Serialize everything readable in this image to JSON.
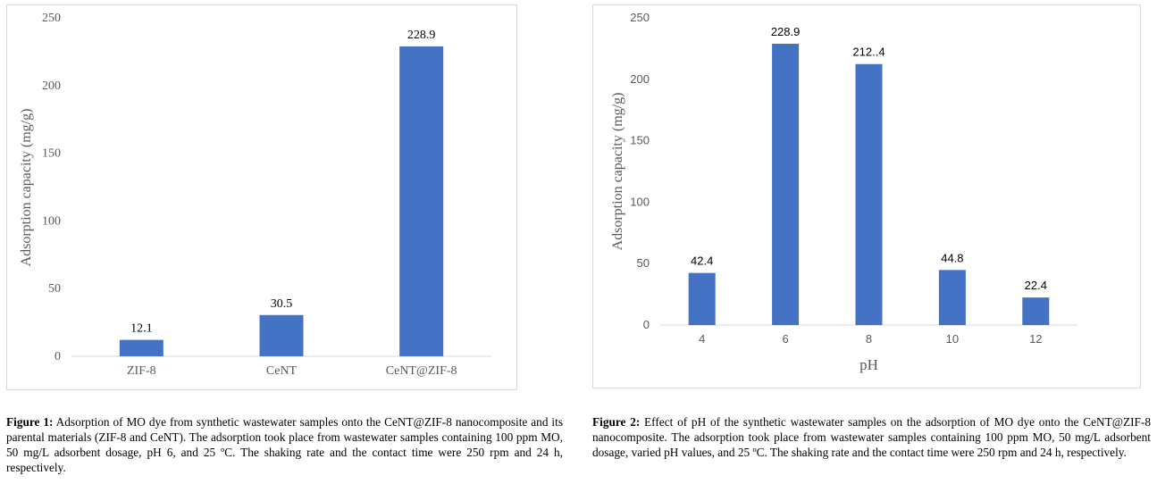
{
  "chart_data": [
    {
      "type": "bar",
      "title": "",
      "xlabel": "",
      "ylabel": "Adsorption capacity (mg/g)",
      "categories": [
        "ZIF-8",
        "CeNT",
        "CeNT@ZIF-8"
      ],
      "values": [
        12.1,
        30.5,
        228.9
      ],
      "data_labels": [
        "12.1",
        "30.5",
        "228.9"
      ],
      "ylim": [
        0,
        250
      ],
      "yticks": [
        0,
        50,
        100,
        150,
        200,
        250
      ],
      "grid": false,
      "color": "#4472c4"
    },
    {
      "type": "bar",
      "title": "",
      "xlabel": "pH",
      "ylabel": "Adsorption capacity (mg/g)",
      "categories": [
        "4",
        "6",
        "8",
        "10",
        "12"
      ],
      "values": [
        42.4,
        228.9,
        212.4,
        44.8,
        22.4
      ],
      "data_labels": [
        "42.4",
        "228.9",
        "212..4",
        "44.8",
        "22.4"
      ],
      "ylim": [
        0,
        250
      ],
      "yticks": [
        0,
        50,
        100,
        150,
        200,
        250
      ],
      "grid": false,
      "color": "#4472c4"
    }
  ],
  "captions": [
    {
      "label": "Figure 1:",
      "text": " Adsorption of MO dye from synthetic wastewater samples onto the CeNT@ZIF-8 nanocomposite and its parental materials (ZIF-8 and CeNT). The adsorption took place from wastewater samples containing 100 ppm MO, 50 mg/L adsorbent dosage, pH 6, and 25 ºC. The shaking rate and the contact time were 250 rpm and 24 h, respectively."
    },
    {
      "label": "Figure 2:",
      "text": " Effect of pH of the synthetic wastewater samples on the adsorption of MO dye onto the CeNT@ZIF-8 nanocomposite. The adsorption took place from wastewater samples containing 100 ppm MO, 50 mg/L adsorbent dosage, varied pH values, and 25 ºC. The shaking rate and the contact time were 250 rpm and 24 h, respectively."
    }
  ]
}
